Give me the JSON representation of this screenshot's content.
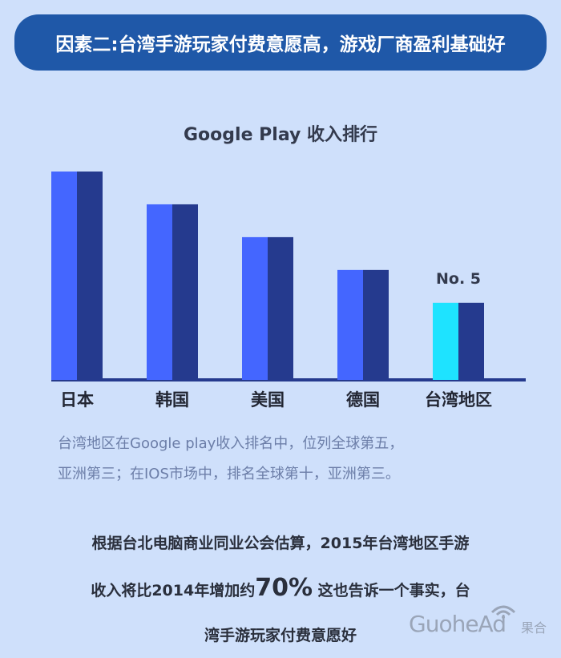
{
  "banner": {
    "title": "因素二:台湾手游玩家付费意愿高，游戏厂商盈利基础好"
  },
  "colors": {
    "background": "#cfe0fb",
    "banner": "#1f58a8",
    "bar_front": "#4466ff",
    "bar_back": "#253a8e",
    "bar_highlight": "#1ee3ff",
    "baseline": "#253a8e"
  },
  "chart_data": {
    "type": "bar",
    "title": "Google Play 收入排行",
    "categories": [
      "日本",
      "韩国",
      "美国",
      "德国",
      "台湾地区"
    ],
    "values": [
      5,
      4,
      3,
      2,
      1
    ],
    "highlight_index": 4,
    "annotations": [
      {
        "category": "台湾地区",
        "text": "No. 5"
      }
    ],
    "xlabel": "",
    "ylabel": "",
    "grid": false,
    "legend": "none"
  },
  "caption": {
    "line1": "台湾地区在Google play收入排名中，位列全球第五，",
    "line2": "亚洲第三；在IOS市场中，排名全球第十，亚洲第三。"
  },
  "summary": {
    "line1": "根据台北电脑商业同业公会估算，2015年台湾地区手游",
    "line2_a": "收入将比2014年增加约",
    "line2_big": "70%",
    "line2_b": " 这也告诉一个事实，台",
    "line3": "湾手游玩家付费意愿好"
  },
  "logo": {
    "text": "GuoheAd",
    "cn": "果合",
    "icon": "wifi-signal-icon"
  }
}
